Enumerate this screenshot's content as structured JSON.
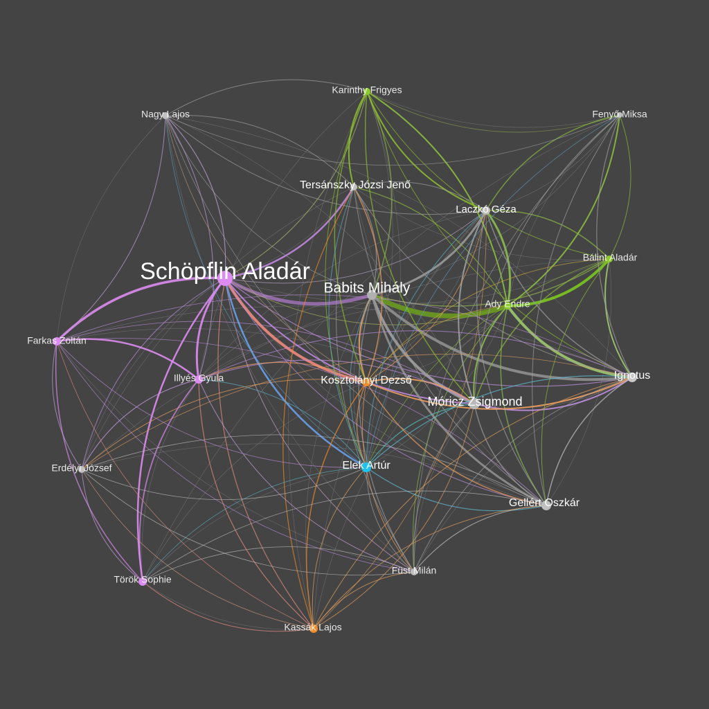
{
  "graph": {
    "background": "#444444",
    "nodes": [
      {
        "id": "schopflin",
        "label": "Schöpflin Aladár",
        "color": "#dc8cf0",
        "weight": "major"
      },
      {
        "id": "babits",
        "label": "Babits Mihály",
        "color": "#b0b0b0",
        "weight": "large"
      },
      {
        "id": "moricz",
        "label": "Móricz Zsigmond",
        "color": "#b8b8b8",
        "weight": "large"
      },
      {
        "id": "kosztolanyi",
        "label": "Kosztolányi Dezső",
        "color": "#f08c2a",
        "weight": "medium"
      },
      {
        "id": "tersanszky",
        "label": "Tersánszky Józsi Jenő",
        "color": "#c0c0c0",
        "weight": "medium"
      },
      {
        "id": "laczko",
        "label": "Laczkó Géza",
        "color": "#c0c0c0",
        "weight": "medium"
      },
      {
        "id": "ignotus",
        "label": "Ignotus",
        "color": "#c8c8c8",
        "weight": "medium"
      },
      {
        "id": "elek",
        "label": "Elek Artúr",
        "color": "#1fc3ef",
        "weight": "medium"
      },
      {
        "id": "gellert",
        "label": "Gellért Oszkár",
        "color": "#c0c0c0",
        "weight": "medium"
      },
      {
        "id": "karinthy",
        "label": "Karinthy Frigyes",
        "color": "#8ccc2a",
        "weight": "minor"
      },
      {
        "id": "nagy",
        "label": "Nagy Lajos",
        "color": "#c0c0c0",
        "weight": "minor"
      },
      {
        "id": "fenyo",
        "label": "Fenyő Miksa",
        "color": "#c0c0c0",
        "weight": "minor"
      },
      {
        "id": "balint",
        "label": "Bálint Aladár",
        "color": "#8ccc2a",
        "weight": "minor"
      },
      {
        "id": "ady",
        "label": "Ady Endre",
        "color": "#8ccc2a",
        "weight": "minor"
      },
      {
        "id": "farkas",
        "label": "Farkas Zoltán",
        "color": "#dc8cf0",
        "weight": "minor"
      },
      {
        "id": "illyes",
        "label": "Illyés Gyula",
        "color": "#dc8cf0",
        "weight": "minor"
      },
      {
        "id": "erdelyi",
        "label": "Erdélyi József",
        "color": "#c0c0c0",
        "weight": "minor"
      },
      {
        "id": "torok",
        "label": "Török Sophie",
        "color": "#dc8cf0",
        "weight": "minor"
      },
      {
        "id": "fust",
        "label": "Füst Milán",
        "color": "#c0c0c0",
        "weight": "minor"
      },
      {
        "id": "kassak",
        "label": "Kassák Lajos",
        "color": "#f08c2a",
        "weight": "minor"
      }
    ],
    "edges": [
      {
        "s": "schopflin",
        "t": "kosztolanyi",
        "color": "#f08a80",
        "w": 4
      },
      {
        "s": "schopflin",
        "t": "babits",
        "color": "#9a70b0",
        "w": 5
      },
      {
        "s": "schopflin",
        "t": "farkas",
        "color": "#dc8cf0",
        "w": 3.5
      },
      {
        "s": "schopflin",
        "t": "illyes",
        "color": "#dc8cf0",
        "w": 3
      },
      {
        "s": "schopflin",
        "t": "torok",
        "color": "#dc8cf0",
        "w": 2.5
      },
      {
        "s": "schopflin",
        "t": "tersanszky",
        "color": "#c088e0",
        "w": 2.5
      },
      {
        "s": "schopflin",
        "t": "elek",
        "color": "#6aa0e8",
        "w": 2.5
      },
      {
        "s": "schopflin",
        "t": "moricz",
        "color": "#c088e0",
        "w": 2
      },
      {
        "s": "schopflin",
        "t": "nagy",
        "color": "#c8a8e0",
        "w": 1.2
      },
      {
        "s": "schopflin",
        "t": "kassak",
        "color": "#e89080",
        "w": 1.2
      },
      {
        "s": "schopflin",
        "t": "karinthy",
        "color": "#b0c070",
        "w": 1
      },
      {
        "s": "schopflin",
        "t": "ignotus",
        "color": "#c090e0",
        "w": 1.2
      },
      {
        "s": "schopflin",
        "t": "gellert",
        "color": "#c090e0",
        "w": 1
      },
      {
        "s": "schopflin",
        "t": "erdelyi",
        "color": "#c090e0",
        "w": 1
      },
      {
        "s": "schopflin",
        "t": "fust",
        "color": "#c8a0c8",
        "w": 1
      },
      {
        "s": "schopflin",
        "t": "ady",
        "color": "#a8b060",
        "w": 1
      },
      {
        "s": "schopflin",
        "t": "laczko",
        "color": "#b0a0c0",
        "w": 1
      },
      {
        "s": "babits",
        "t": "ady",
        "color": "#6a9a20",
        "w": 7
      },
      {
        "s": "babits",
        "t": "ignotus",
        "color": "#909090",
        "w": 4
      },
      {
        "s": "babits",
        "t": "moricz",
        "color": "#a0a0a0",
        "w": 4
      },
      {
        "s": "babits",
        "t": "laczko",
        "color": "#9a9a9a",
        "w": 3
      },
      {
        "s": "babits",
        "t": "gellert",
        "color": "#909090",
        "w": 3
      },
      {
        "s": "babits",
        "t": "kosztolanyi",
        "color": "#e8a060",
        "w": 2
      },
      {
        "s": "babits",
        "t": "karinthy",
        "color": "#90b050",
        "w": 1.5
      },
      {
        "s": "babits",
        "t": "tersanszky",
        "color": "#a0a0a0",
        "w": 1.2
      },
      {
        "s": "babits",
        "t": "fust",
        "color": "#a0a0a0",
        "w": 1.2
      },
      {
        "s": "babits",
        "t": "balint",
        "color": "#90b050",
        "w": 1.5
      },
      {
        "s": "babits",
        "t": "elek",
        "color": "#60b0c8",
        "w": 1
      },
      {
        "s": "ady",
        "t": "ignotus",
        "color": "#a0c870",
        "w": 4
      },
      {
        "s": "ady",
        "t": "balint",
        "color": "#7cc820",
        "w": 4
      },
      {
        "s": "ady",
        "t": "laczko",
        "color": "#8cbc50",
        "w": 3
      },
      {
        "s": "ady",
        "t": "karinthy",
        "color": "#8cbc40",
        "w": 2
      },
      {
        "s": "ady",
        "t": "moricz",
        "color": "#8cbc50",
        "w": 2
      },
      {
        "s": "ady",
        "t": "fenyo",
        "color": "#8cbc40",
        "w": 2
      },
      {
        "s": "ady",
        "t": "gellert",
        "color": "#8cbc50",
        "w": 1.5
      },
      {
        "s": "ady",
        "t": "tersanszky",
        "color": "#8cbc40",
        "w": 1.2
      },
      {
        "s": "ady",
        "t": "fust",
        "color": "#8cbc50",
        "w": 1
      },
      {
        "s": "ady",
        "t": "kosztolanyi",
        "color": "#c0a040",
        "w": 1
      },
      {
        "s": "karinthy",
        "t": "tersanszky",
        "color": "#8cbc30",
        "w": 2
      },
      {
        "s": "karinthy",
        "t": "laczko",
        "color": "#8cbc30",
        "w": 2
      },
      {
        "s": "karinthy",
        "t": "moricz",
        "color": "#8cbc30",
        "w": 1.5
      },
      {
        "s": "karinthy",
        "t": "kosztolanyi",
        "color": "#8cbc30",
        "w": 1.5
      },
      {
        "s": "karinthy",
        "t": "nagy",
        "color": "#a0a0a0",
        "w": 1
      },
      {
        "s": "karinthy",
        "t": "balint",
        "color": "#8cbc30",
        "w": 1
      },
      {
        "s": "karinthy",
        "t": "ignotus",
        "color": "#8cbc30",
        "w": 1
      },
      {
        "s": "karinthy",
        "t": "elek",
        "color": "#8cbc30",
        "w": 1
      },
      {
        "s": "karinthy",
        "t": "fenyo",
        "color": "#8aa050",
        "w": 0.8
      },
      {
        "s": "balint",
        "t": "ignotus",
        "color": "#a0c870",
        "w": 2
      },
      {
        "s": "balint",
        "t": "laczko",
        "color": "#8cbc40",
        "w": 1.5
      },
      {
        "s": "balint",
        "t": "moricz",
        "color": "#8cbc40",
        "w": 1.5
      },
      {
        "s": "balint",
        "t": "fenyo",
        "color": "#8cbc40",
        "w": 1
      },
      {
        "s": "balint",
        "t": "kosztolanyi",
        "color": "#c0a040",
        "w": 1
      },
      {
        "s": "fenyo",
        "t": "ignotus",
        "color": "#a0a0a0",
        "w": 1.2
      },
      {
        "s": "fenyo",
        "t": "laczko",
        "color": "#8cbc40",
        "w": 1.5
      },
      {
        "s": "fenyo",
        "t": "gellert",
        "color": "#a0a0a0",
        "w": 1
      },
      {
        "s": "fenyo",
        "t": "moricz",
        "color": "#a0a0a0",
        "w": 1
      },
      {
        "s": "laczko",
        "t": "moricz",
        "color": "#a0a0a0",
        "w": 2
      },
      {
        "s": "laczko",
        "t": "ignotus",
        "color": "#a0a0a0",
        "w": 1.5
      },
      {
        "s": "laczko",
        "t": "gellert",
        "color": "#a0a0a0",
        "w": 1.2
      },
      {
        "s": "laczko",
        "t": "elek",
        "color": "#60b0c8",
        "w": 1
      },
      {
        "s": "laczko",
        "t": "tersanszky",
        "color": "#a0a0a0",
        "w": 1
      },
      {
        "s": "moricz",
        "t": "ignotus",
        "color": "#c090e0",
        "w": 2
      },
      {
        "s": "moricz",
        "t": "kosztolanyi",
        "color": "#f0a060",
        "w": 2
      },
      {
        "s": "moricz",
        "t": "gellert",
        "color": "#a0a0a0",
        "w": 1.5
      },
      {
        "s": "moricz",
        "t": "elek",
        "color": "#50c8c0",
        "w": 1.2
      },
      {
        "s": "moricz",
        "t": "illyes",
        "color": "#c090e0",
        "w": 1.2
      },
      {
        "s": "moricz",
        "t": "fust",
        "color": "#a0a0a0",
        "w": 1
      },
      {
        "s": "moricz",
        "t": "farkas",
        "color": "#c090e0",
        "w": 0.8
      },
      {
        "s": "kosztolanyi",
        "t": "tersanszky",
        "color": "#f0a060",
        "w": 1.5
      },
      {
        "s": "kosztolanyi",
        "t": "ignotus",
        "color": "#f0a060",
        "w": 2
      },
      {
        "s": "kosztolanyi",
        "t": "gellert",
        "color": "#f0a060",
        "w": 1.5
      },
      {
        "s": "kosztolanyi",
        "t": "kassak",
        "color": "#f08c2a",
        "w": 1.5
      },
      {
        "s": "kosztolanyi",
        "t": "illyes",
        "color": "#f0a060",
        "w": 1.2
      },
      {
        "s": "kosztolanyi",
        "t": "elek",
        "color": "#f0a060",
        "w": 1.2
      },
      {
        "s": "kosztolanyi",
        "t": "fust",
        "color": "#f0a060",
        "w": 1
      },
      {
        "s": "kosztolanyi",
        "t": "erdelyi",
        "color": "#e8a060",
        "w": 1
      },
      {
        "s": "kosztolanyi",
        "t": "laczko",
        "color": "#e8a060",
        "w": 1
      },
      {
        "s": "tersanszky",
        "t": "kassak",
        "color": "#f08c2a",
        "w": 1.2
      },
      {
        "s": "tersanszky",
        "t": "fust",
        "color": "#a0a0a0",
        "w": 1
      },
      {
        "s": "tersanszky",
        "t": "gellert",
        "color": "#a0a0a0",
        "w": 1
      },
      {
        "s": "tersanszky",
        "t": "elek",
        "color": "#60b0c8",
        "w": 1
      },
      {
        "s": "tersanszky",
        "t": "nagy",
        "color": "#a0a0a0",
        "w": 1
      },
      {
        "s": "tersanszky",
        "t": "ignotus",
        "color": "#a0a0a0",
        "w": 1
      },
      {
        "s": "ignotus",
        "t": "gellert",
        "color": "#c0c0c0",
        "w": 1.5
      },
      {
        "s": "ignotus",
        "t": "elek",
        "color": "#60c0d8",
        "w": 1.2
      },
      {
        "s": "ignotus",
        "t": "fust",
        "color": "#a0a0a0",
        "w": 1
      },
      {
        "s": "ignotus",
        "t": "kassak",
        "color": "#e0a060",
        "w": 1
      },
      {
        "s": "ignotus",
        "t": "illyes",
        "color": "#c090e0",
        "w": 1
      },
      {
        "s": "ignotus",
        "t": "farkas",
        "color": "#c090e0",
        "w": 0.8
      },
      {
        "s": "ignotus",
        "t": "erdelyi",
        "color": "#e0a060",
        "w": 0.8
      },
      {
        "s": "elek",
        "t": "gellert",
        "color": "#60c0d8",
        "w": 1.2
      },
      {
        "s": "elek",
        "t": "fust",
        "color": "#a0a0a0",
        "w": 1
      },
      {
        "s": "elek",
        "t": "illyes",
        "color": "#60b0c8",
        "w": 1
      },
      {
        "s": "elek",
        "t": "kassak",
        "color": "#e0a060",
        "w": 1
      },
      {
        "s": "elek",
        "t": "torok",
        "color": "#60b0c8",
        "w": 0.8
      },
      {
        "s": "gellert",
        "t": "fust",
        "color": "#c0c0c0",
        "w": 1.2
      },
      {
        "s": "gellert",
        "t": "kassak",
        "color": "#e0a060",
        "w": 1
      },
      {
        "s": "gellert",
        "t": "torok",
        "color": "#c0c0c0",
        "w": 0.8
      },
      {
        "s": "gellert",
        "t": "erdelyi",
        "color": "#c0c0c0",
        "w": 0.8
      },
      {
        "s": "gellert",
        "t": "farkas",
        "color": "#c090e0",
        "w": 0.8
      },
      {
        "s": "fust",
        "t": "kassak",
        "color": "#e0a060",
        "w": 1
      },
      {
        "s": "fust",
        "t": "torok",
        "color": "#c0c0c0",
        "w": 0.8
      },
      {
        "s": "illyes",
        "t": "farkas",
        "color": "#dc8cf0",
        "w": 2.5
      },
      {
        "s": "illyes",
        "t": "torok",
        "color": "#dc8cf0",
        "w": 1.8
      },
      {
        "s": "illyes",
        "t": "erdelyi",
        "color": "#c8a0e0",
        "w": 1.2
      },
      {
        "s": "illyes",
        "t": "kassak",
        "color": "#e89080",
        "w": 1.2
      },
      {
        "s": "illyes",
        "t": "nagy",
        "color": "#c8a0e0",
        "w": 1
      },
      {
        "s": "illyes",
        "t": "fust",
        "color": "#c8a0e0",
        "w": 1
      },
      {
        "s": "farkas",
        "t": "torok",
        "color": "#dc8cf0",
        "w": 1.5
      },
      {
        "s": "farkas",
        "t": "erdelyi",
        "color": "#c8a0e0",
        "w": 1
      },
      {
        "s": "farkas",
        "t": "nagy",
        "color": "#c8a0e0",
        "w": 1
      },
      {
        "s": "farkas",
        "t": "kassak",
        "color": "#e89080",
        "w": 0.8
      },
      {
        "s": "farkas",
        "t": "elek",
        "color": "#c090e0",
        "w": 0.8
      },
      {
        "s": "farkas",
        "t": "fust",
        "color": "#c090e0",
        "w": 0.8
      },
      {
        "s": "erdelyi",
        "t": "torok",
        "color": "#c8a0e0",
        "w": 1
      },
      {
        "s": "erdelyi",
        "t": "kassak",
        "color": "#e0a080",
        "w": 0.8
      },
      {
        "s": "erdelyi",
        "t": "fust",
        "color": "#c0c0c0",
        "w": 0.8
      },
      {
        "s": "erdelyi",
        "t": "elek",
        "color": "#c0c0c0",
        "w": 0.8
      },
      {
        "s": "torok",
        "t": "kassak",
        "color": "#e89080",
        "w": 1
      },
      {
        "s": "nagy",
        "t": "laczko",
        "color": "#a0a0a0",
        "w": 1
      },
      {
        "s": "nagy",
        "t": "fenyo",
        "color": "#a0a0a0",
        "w": 0.8
      },
      {
        "s": "nagy",
        "t": "babits",
        "color": "#a0a0a0",
        "w": 0.8
      },
      {
        "s": "nagy",
        "t": "elek",
        "color": "#60a0c8",
        "w": 0.8
      },
      {
        "s": "nagy",
        "t": "gellert",
        "color": "#a0a0a0",
        "w": 0.8
      },
      {
        "s": "nagy",
        "t": "kosztolanyi",
        "color": "#c0a080",
        "w": 0.8
      },
      {
        "s": "kassak",
        "t": "moricz",
        "color": "#e0a060",
        "w": 1
      },
      {
        "s": "kassak",
        "t": "laczko",
        "color": "#e0a060",
        "w": 0.8
      },
      {
        "s": "fenyo",
        "t": "fust",
        "color": "#a0a0a0",
        "w": 0.8
      },
      {
        "s": "fenyo",
        "t": "elek",
        "color": "#60a0c8",
        "w": 0.8
      },
      {
        "s": "balint",
        "t": "gellert",
        "color": "#8cbc40",
        "w": 1
      },
      {
        "s": "balint",
        "t": "elek",
        "color": "#8cbc40",
        "w": 0.8
      }
    ]
  }
}
